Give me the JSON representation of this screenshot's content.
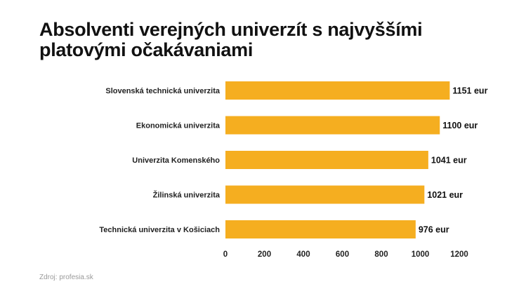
{
  "chart_data": {
    "type": "bar",
    "orientation": "horizontal",
    "title": "Absolventi verejných univerzít s najvyššími platovými očakávaniami",
    "categories": [
      "Slovenská technická univerzita",
      "Ekonomická univerzita",
      "Univerzita Komenského",
      "Žilinská univerzita",
      "Technická univerzita v Košiciach"
    ],
    "values": [
      1151,
      1100,
      1041,
      1021,
      976
    ],
    "data_labels": [
      "1151 eur",
      "1100 eur",
      "1041 eur",
      "1021 eur",
      "976 eur"
    ],
    "xlim": [
      0,
      1200
    ],
    "xticks": [
      0,
      200,
      400,
      600,
      800,
      1000,
      1200
    ],
    "grid": false,
    "bar_color": "#f5ae20"
  },
  "source": "Zdroj: profesia.sk"
}
